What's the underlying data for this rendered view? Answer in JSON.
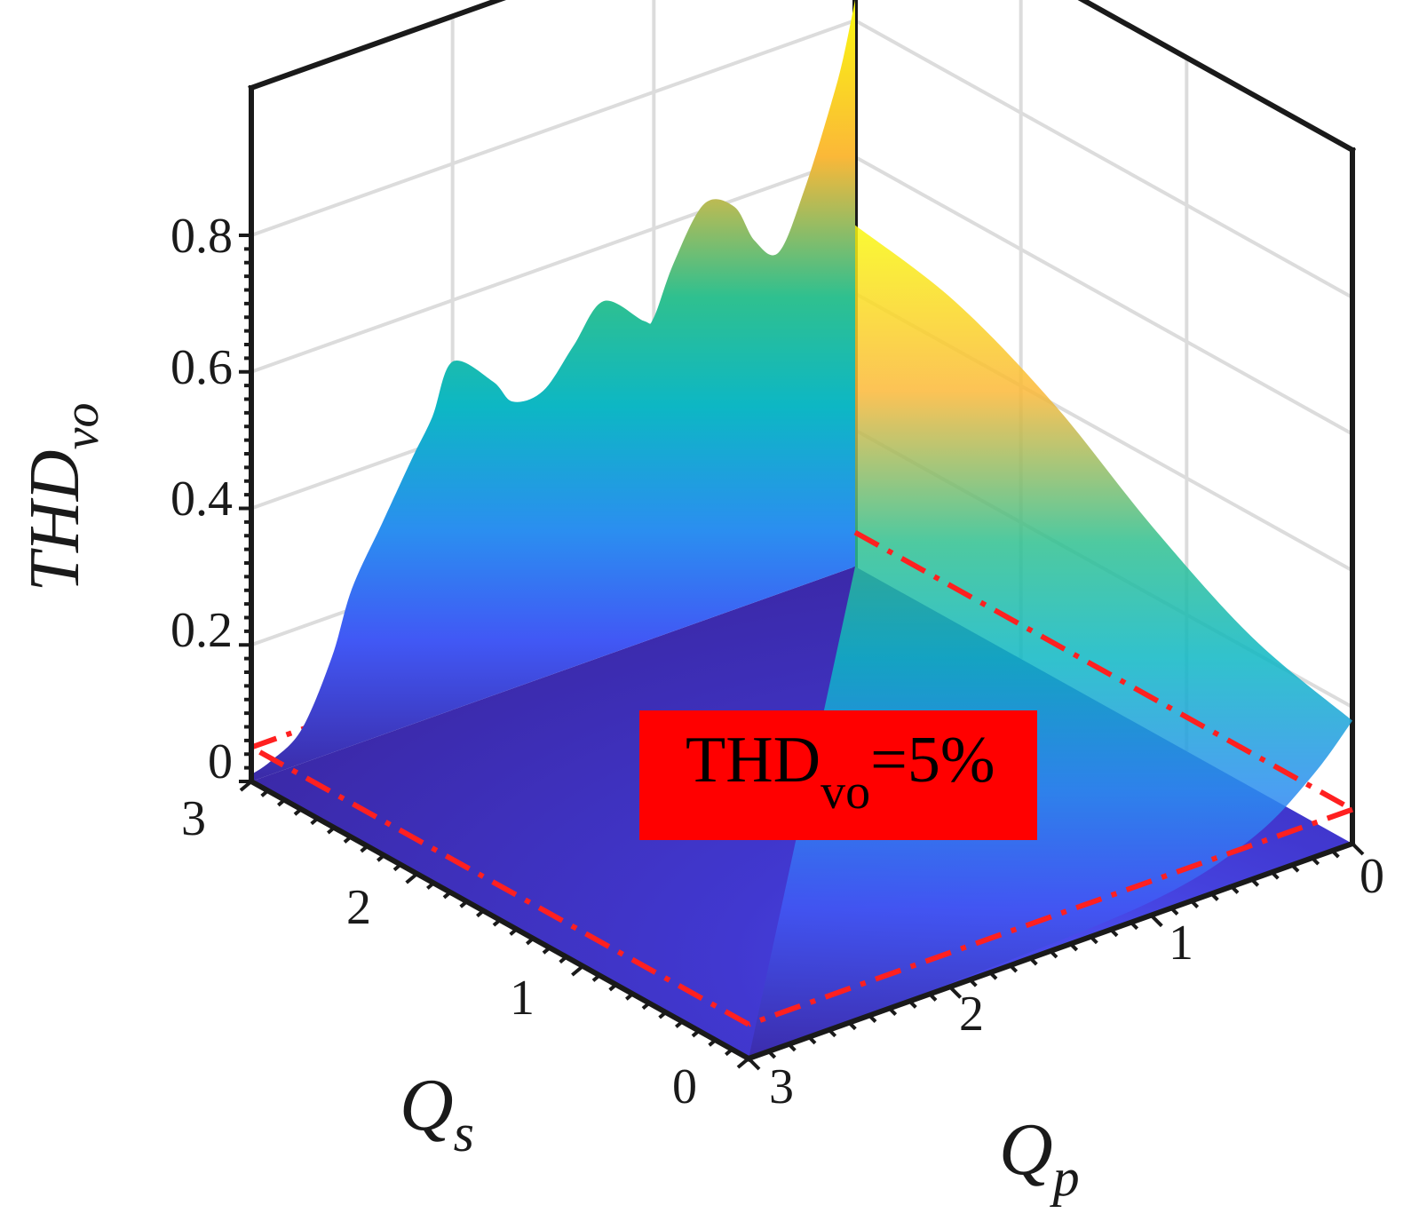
{
  "chart_data": {
    "type": "surface3d",
    "title": "",
    "axes": {
      "x": {
        "label": "Q",
        "label_sub": "p",
        "range": [
          0,
          3
        ],
        "ticks": [
          "0",
          "1",
          "2",
          "3"
        ]
      },
      "y": {
        "label": "Q",
        "label_sub": "s",
        "range": [
          0,
          3
        ],
        "ticks": [
          "0",
          "1",
          "2",
          "3"
        ]
      },
      "z": {
        "label": "THD",
        "label_sub": "vo",
        "range": [
          0,
          0.8
        ],
        "ticks": [
          "0",
          "0.2",
          "0.4",
          "0.6",
          "0.8"
        ]
      }
    },
    "grid": true,
    "colormap": "parula",
    "surface_profile_along_Qp_at_Qs_3": {
      "Qp": [
        0,
        0.06,
        0.12,
        0.25,
        0.38,
        0.5,
        0.6,
        0.75,
        0.9,
        1.0,
        1.05,
        1.25,
        1.4,
        1.55,
        1.7,
        1.8,
        2.0,
        2.1,
        2.2,
        2.35,
        2.5,
        2.6,
        2.75,
        2.9,
        3.0
      ],
      "THD_vo": [
        0.83,
        0.75,
        0.69,
        0.58,
        0.5,
        0.53,
        0.59,
        0.61,
        0.54,
        0.47,
        0.47,
        0.52,
        0.47,
        0.42,
        0.42,
        0.46,
        0.51,
        0.44,
        0.39,
        0.31,
        0.23,
        0.14,
        0.05,
        0.02,
        0.01
      ]
    },
    "threshold_region": {
      "style": "red dash-dot rectangle",
      "THD_vo": 0.05,
      "Qp_range": [
        0,
        3
      ],
      "Qs_range": [
        0,
        3
      ]
    },
    "annotation": {
      "text": "THD",
      "sub": "vo",
      "suffix": "=5%",
      "background": "#ff0000"
    },
    "colors": {
      "axis": "#1a1a1a",
      "grid": "#dcdcdc",
      "threshold": "#ff2020",
      "floor": "#3b2aa6"
    }
  }
}
